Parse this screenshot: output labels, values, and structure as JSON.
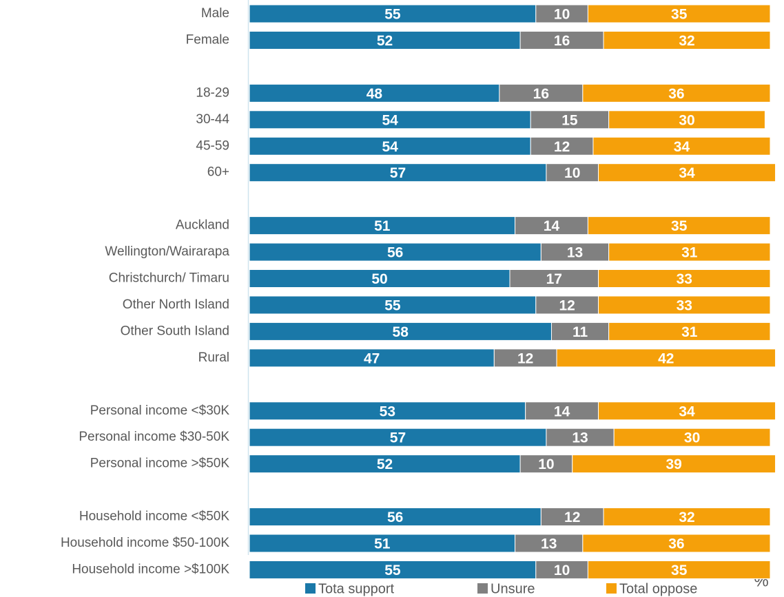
{
  "chart_data": {
    "type": "stacked-barh",
    "categories": [
      "Male",
      "Female",
      null,
      "18-29",
      "30-44",
      "45-59",
      "60+",
      null,
      "Auckland",
      "Wellington/Wairarapa",
      "Christchurch/ Timaru",
      "Other North Island",
      "Other South Island",
      "Rural",
      null,
      "Personal income <$30K",
      "Personal income $30-50K",
      "Personal income >$50K",
      null,
      "Household income <$50K",
      "Household income $50-100K",
      "Household income >$100K"
    ],
    "series": [
      {
        "name": "Tota support",
        "color": "#1a78a8",
        "values": [
          55,
          52,
          null,
          48,
          54,
          54,
          57,
          null,
          51,
          56,
          50,
          55,
          58,
          47,
          null,
          53,
          57,
          52,
          null,
          56,
          51,
          55
        ]
      },
      {
        "name": "Unsure",
        "color": "#808080",
        "values": [
          10,
          16,
          null,
          16,
          15,
          12,
          10,
          null,
          14,
          13,
          17,
          12,
          11,
          12,
          null,
          14,
          13,
          10,
          null,
          12,
          13,
          10
        ]
      },
      {
        "name": "Total oppose",
        "color": "#f5a00a",
        "values": [
          35,
          32,
          null,
          36,
          30,
          34,
          34,
          null,
          35,
          31,
          33,
          33,
          31,
          42,
          null,
          34,
          30,
          39,
          null,
          32,
          36,
          35
        ]
      }
    ],
    "xlim": [
      0,
      100
    ],
    "unit_label": "%",
    "legend": "bottom"
  }
}
